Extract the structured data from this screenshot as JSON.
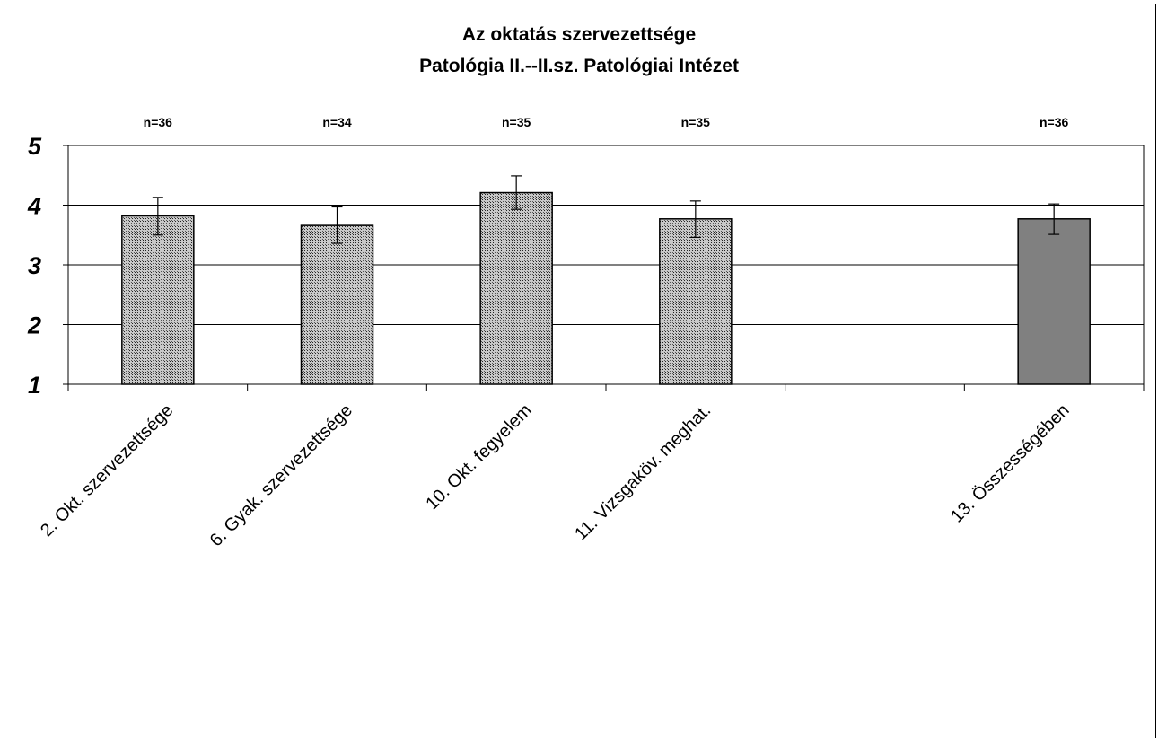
{
  "chart_data": {
    "type": "bar",
    "title": "Az oktatás szervezettsége",
    "subtitle": "Patológia II.--II.sz. Patológiai Intézet",
    "categories": [
      "2. Okt. szervezettsége",
      "6. Gyak. szervezettsége",
      "10. Okt. fegyelem",
      "11. Vizsgaköv. meghat.",
      "",
      "13. Összességében"
    ],
    "values": [
      3.82,
      3.66,
      4.21,
      3.77,
      null,
      3.77
    ],
    "error_low": [
      3.5,
      3.36,
      3.93,
      3.46,
      null,
      3.51
    ],
    "error_high": [
      4.13,
      3.97,
      4.49,
      4.07,
      null,
      4.02
    ],
    "n_labels": [
      "n=36",
      "n=34",
      "n=35",
      "n=35",
      "",
      "n=36"
    ],
    "bar_styles": [
      "hatched",
      "hatched",
      "hatched",
      "hatched",
      "none",
      "solid"
    ],
    "colors": {
      "hatched_fill": "#9a9a9a",
      "solid_fill": "#808080",
      "grid": "#000000"
    },
    "ylim": [
      1,
      5
    ],
    "yticks": [
      "1",
      "2",
      "3",
      "4",
      "5"
    ],
    "grid": true,
    "legend": "none",
    "xlabel": "",
    "ylabel": ""
  }
}
